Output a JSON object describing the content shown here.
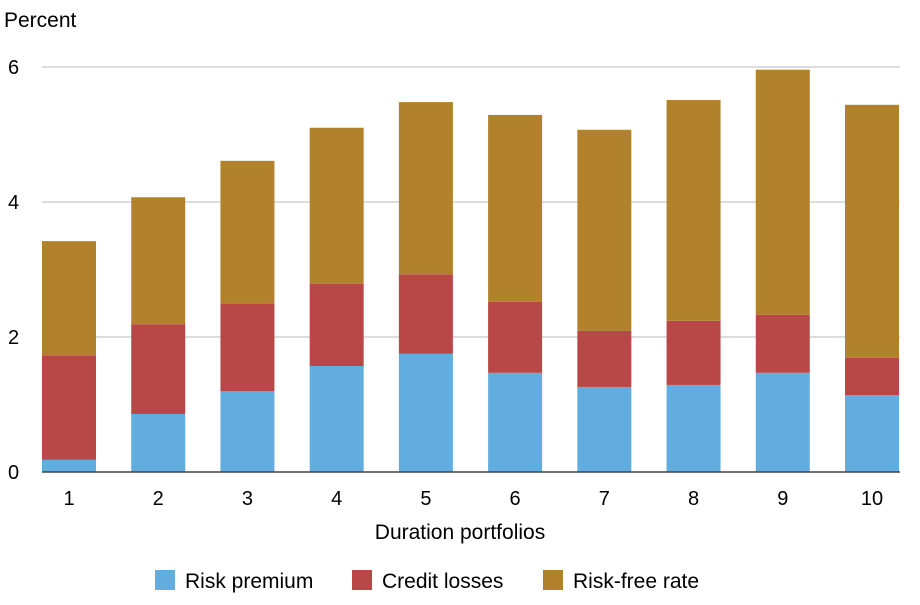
{
  "chart_data": {
    "type": "bar",
    "stacked": true,
    "title": "",
    "ylabel": "Percent",
    "xlabel": "Duration portfolios",
    "ylim": [
      0,
      6
    ],
    "yticks": [
      "0",
      "2",
      "4",
      "6"
    ],
    "grid": true,
    "legend_position": "bottom",
    "categories": [
      "1",
      "2",
      "3",
      "4",
      "5",
      "6",
      "7",
      "8",
      "9",
      "10"
    ],
    "series": [
      {
        "name": "Risk premium",
        "color": "#62ADE0",
        "values": [
          0.18,
          0.86,
          1.2,
          1.57,
          1.75,
          1.47,
          1.26,
          1.29,
          1.47,
          1.14
        ]
      },
      {
        "name": "Credit losses",
        "color": "#B94747",
        "values": [
          1.55,
          1.33,
          1.3,
          1.22,
          1.18,
          1.05,
          0.83,
          0.95,
          0.86,
          0.55
        ]
      },
      {
        "name": "Risk-free rate",
        "color": "#B1812C",
        "values": [
          1.69,
          1.88,
          2.11,
          2.31,
          2.55,
          2.77,
          2.98,
          3.27,
          3.63,
          3.75
        ]
      }
    ]
  }
}
